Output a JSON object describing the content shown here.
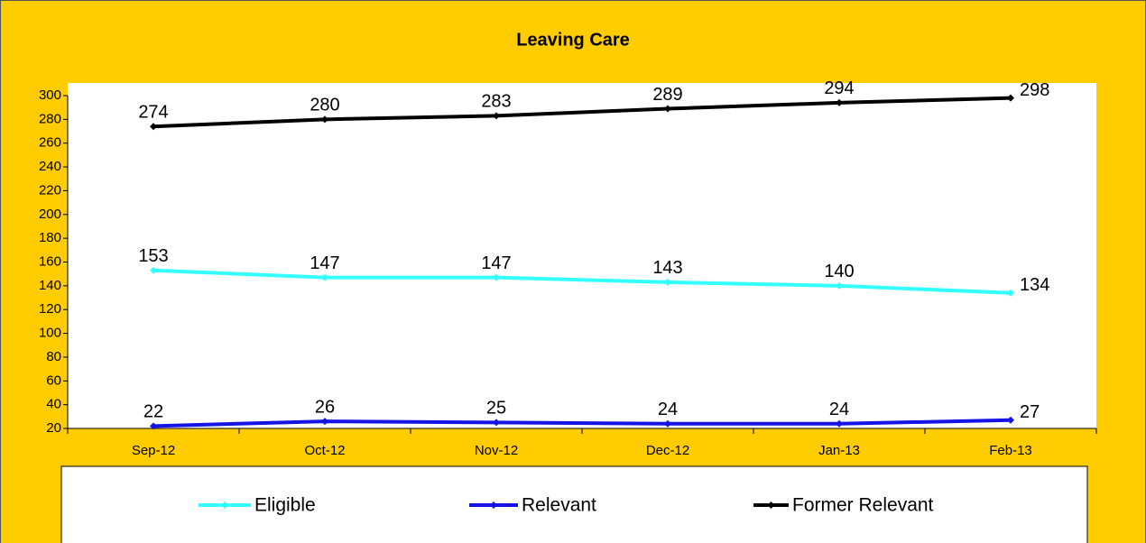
{
  "chart_data": {
    "type": "line",
    "title": "Leaving Care",
    "categories": [
      "Sep-12",
      "Oct-12",
      "Nov-12",
      "Dec-12",
      "Jan-13",
      "Feb-13"
    ],
    "series": [
      {
        "name": "Eligible",
        "color": "#33FFFF",
        "values": [
          153,
          147,
          147,
          143,
          140,
          134
        ]
      },
      {
        "name": "Relevant",
        "color": "#1414E6",
        "values": [
          22,
          26,
          25,
          24,
          24,
          27
        ]
      },
      {
        "name": "Former Relevant",
        "color": "#000000",
        "values": [
          274,
          280,
          283,
          289,
          294,
          298
        ]
      }
    ],
    "ylim": [
      20,
      300
    ],
    "yticks": [
      20,
      40,
      60,
      80,
      100,
      120,
      140,
      160,
      180,
      200,
      220,
      240,
      260,
      280,
      300
    ],
    "grid": false,
    "legend": "bottom"
  }
}
